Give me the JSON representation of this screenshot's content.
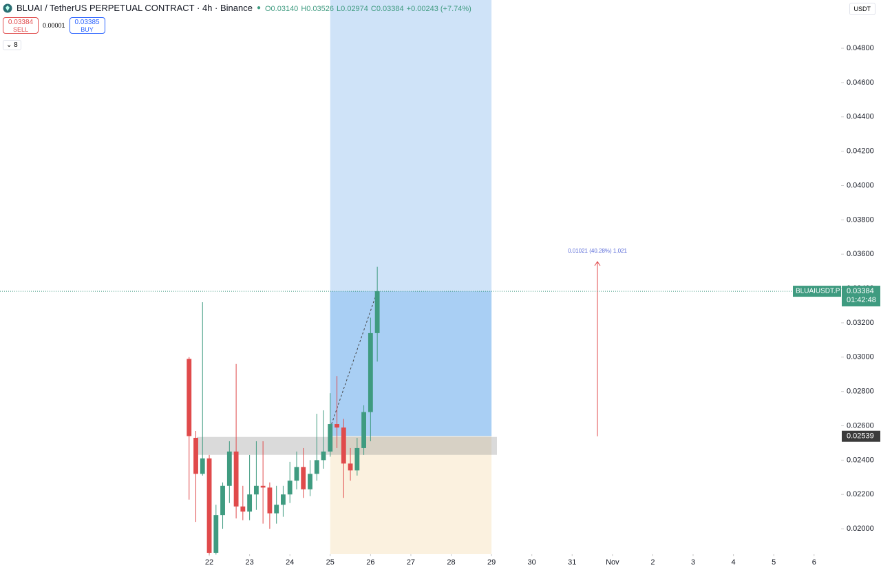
{
  "chart_data": {
    "type": "candlestick",
    "header": {
      "title": "BLUAI / TetherUS PERPETUAL CONTRACT · 4h · Binance",
      "ohlc": [
        "O0.03140",
        "H0.03526",
        "L0.02974",
        "C0.03384",
        "+0.00243 (+7.74%)"
      ],
      "sell_price": "0.03384",
      "sell_label": "SELL",
      "spread": "0.00001",
      "buy_price": "0.03385",
      "buy_label": "BUY",
      "indicators": "8",
      "currency": "USDT"
    },
    "x": [
      21.5,
      21.667,
      21.833,
      22,
      22.167,
      22.333,
      22.5,
      22.667,
      22.833,
      23,
      23.167,
      23.333,
      23.5,
      23.667,
      23.833,
      24,
      24.167,
      24.333,
      24.5,
      24.667,
      24.833,
      25,
      25.167,
      25.333,
      25.5,
      25.667,
      25.833,
      26,
      26.167
    ],
    "series": [
      {
        "name": "open",
        "values": [
          0.0299,
          0.0253,
          0.0232,
          0.0241,
          0.0186,
          0.0208,
          0.0225,
          0.0245,
          0.0213,
          0.021,
          0.022,
          0.0225,
          0.0224,
          0.0209,
          0.0214,
          0.022,
          0.0228,
          0.0236,
          0.0223,
          0.0232,
          0.024,
          0.0245,
          0.0261,
          0.0259,
          0.0238,
          0.0234,
          0.0247,
          0.0268,
          0.0314
        ]
      },
      {
        "name": "high",
        "values": [
          0.03,
          0.0257,
          0.0332,
          0.0243,
          0.0214,
          0.0227,
          0.0251,
          0.0296,
          0.0225,
          0.0243,
          0.0251,
          0.0251,
          0.0227,
          0.0225,
          0.0225,
          0.0239,
          0.0245,
          0.0247,
          0.024,
          0.0267,
          0.0269,
          0.0279,
          0.0289,
          0.0264,
          0.0247,
          0.0253,
          0.0272,
          0.0323,
          0.03526
        ]
      },
      {
        "name": "low",
        "values": [
          0.0217,
          0.0204,
          0.0231,
          0.0185,
          0.0185,
          0.02,
          0.0215,
          0.0206,
          0.0205,
          0.0205,
          0.0211,
          0.0203,
          0.02,
          0.0203,
          0.0207,
          0.0215,
          0.0223,
          0.0218,
          0.0219,
          0.0228,
          0.0235,
          0.0242,
          0.0247,
          0.0218,
          0.0228,
          0.0231,
          0.0243,
          0.0251,
          0.02974
        ]
      },
      {
        "name": "close",
        "values": [
          0.0254,
          0.0232,
          0.0241,
          0.0186,
          0.0208,
          0.0225,
          0.0245,
          0.0213,
          0.021,
          0.022,
          0.0225,
          0.0224,
          0.0209,
          0.0214,
          0.022,
          0.0228,
          0.0236,
          0.0223,
          0.0232,
          0.024,
          0.0245,
          0.0261,
          0.0259,
          0.0238,
          0.0234,
          0.0247,
          0.0268,
          0.0314,
          0.03384
        ]
      }
    ],
    "up_color": "#3f9b80",
    "down_color": "#e04a4b",
    "xlim": [
      16.81,
      37.67
    ],
    "xticks": [
      22,
      23,
      24,
      25,
      26,
      27,
      28,
      29,
      30,
      31,
      {
        "value": 32,
        "label": "Nov"
      },
      {
        "value": 33,
        "label": "2"
      },
      {
        "value": 34,
        "label": "3"
      },
      {
        "value": 35,
        "label": "4"
      },
      {
        "value": 36,
        "label": "5"
      },
      {
        "value": 37,
        "label": "6"
      }
    ],
    "ylim": [
      0.01852,
      0.05081
    ],
    "yticks": [
      {
        "value": 0.02,
        "label": "0.02000"
      },
      {
        "value": 0.022,
        "label": "0.02200"
      },
      {
        "value": 0.024,
        "label": "0.02400"
      },
      {
        "value": 0.026,
        "label": "0.02600"
      },
      {
        "value": 0.028,
        "label": "0.02800"
      },
      {
        "value": 0.03,
        "label": "0.03000"
      },
      {
        "value": 0.032,
        "label": "0.03200"
      },
      {
        "value": 0.034,
        "label": "0.03400"
      },
      {
        "value": 0.036,
        "label": "0.03600"
      },
      {
        "value": 0.038,
        "label": "0.03800"
      },
      {
        "value": 0.04,
        "label": "0.04000"
      },
      {
        "value": 0.042,
        "label": "0.04200"
      },
      {
        "value": 0.044,
        "label": "0.04400"
      },
      {
        "value": 0.046,
        "label": "0.04600"
      },
      {
        "value": 0.048,
        "label": "0.04800"
      }
    ],
    "last_price": {
      "name": "BLUAIUSDT.P",
      "value": 0.03384,
      "countdown": "01:42:48"
    },
    "entry_price": 0.02539,
    "measure_label": "0.01021 (40.28%) 1,021"
  }
}
